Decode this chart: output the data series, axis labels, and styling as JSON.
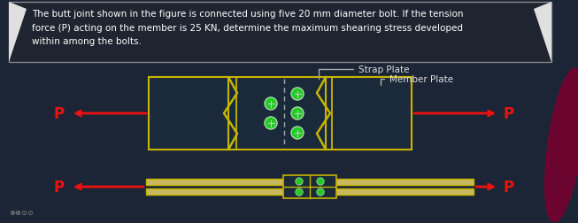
{
  "bg_color": "#1b2535",
  "text_box_bg": "#1e2530",
  "text_box_border": "#888888",
  "title_text": "The butt joint shown in the figure is connected using five 20 mm diameter bolt. If the tension\nforce (P) acting on the member is 25 KN, determine the maximum shearing stress developed\nwithin among the bolts.",
  "title_color": "#ffffff",
  "title_fontsize": 7.5,
  "label_strap": "Strap Plate",
  "label_member": "Member Plate",
  "label_color": "#dddddd",
  "arrow_color": "#ee1111",
  "plate_outline_color": "#c8b400",
  "plate_fill_color": "#1a2a3a",
  "bolt_fill": "#22cc22",
  "dashed_color": "#aaaaaa",
  "P_label_color": "#ee1111",
  "reddish_blob": "#7a0030"
}
